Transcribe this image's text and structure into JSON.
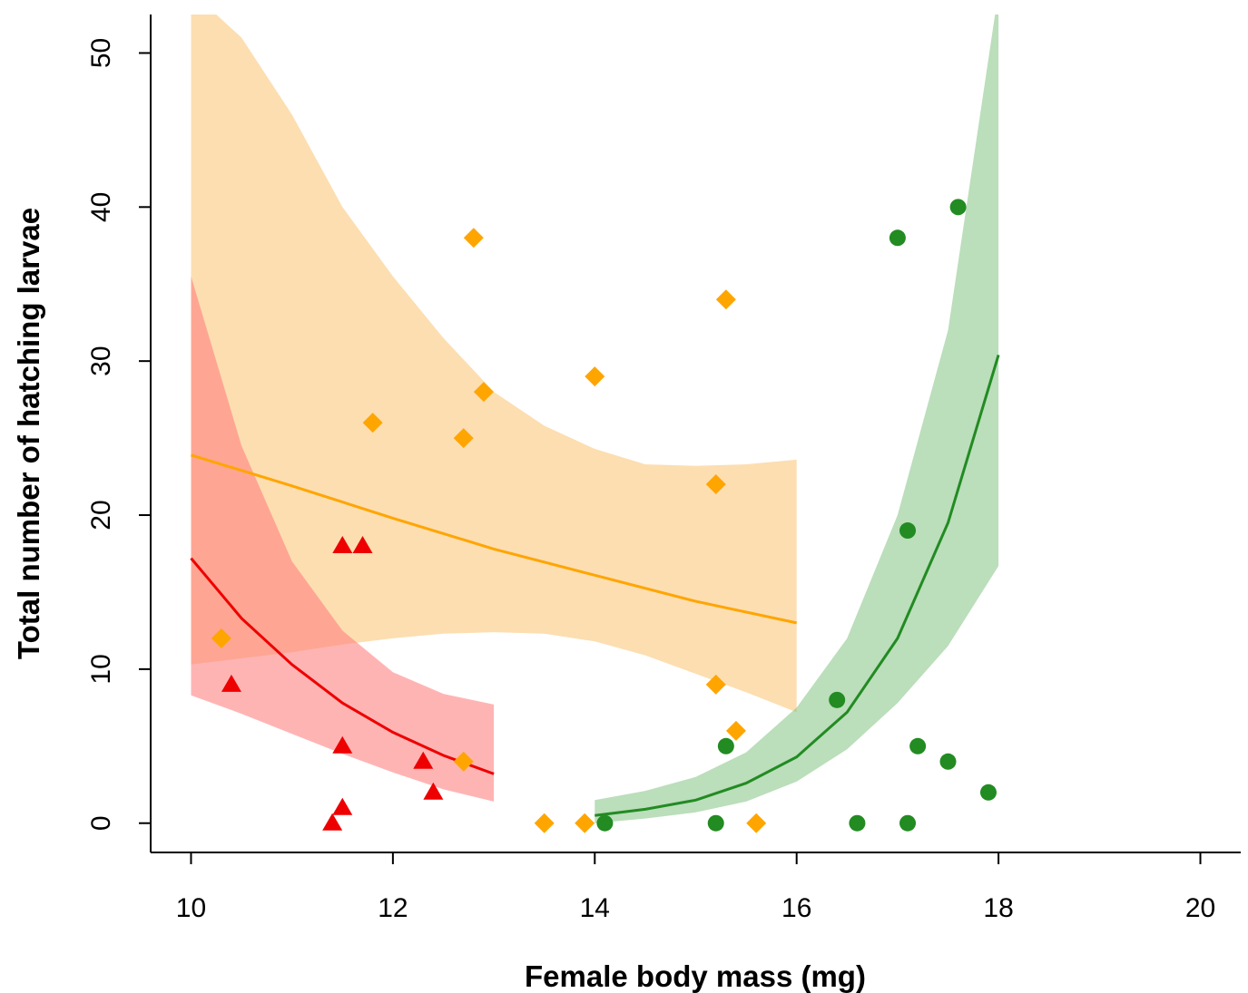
{
  "chart_data": {
    "type": "scatter",
    "title": "",
    "xlabel": "Female body mass (mg)",
    "ylabel": "Total number of hatching larvae",
    "xlim": [
      9.6,
      20.4
    ],
    "ylim": [
      -1.9,
      52.5
    ],
    "x_ticks": [
      10,
      12,
      14,
      16,
      18,
      20
    ],
    "y_ticks": [
      0,
      10,
      20,
      30,
      40,
      50
    ],
    "grid": false,
    "legend": "none",
    "series": [
      {
        "marker": "diamond",
        "color": "#FFA500",
        "band_color": "rgba(250,205,135,0.65)",
        "points": [
          {
            "x": 10.3,
            "y": 12
          },
          {
            "x": 11.8,
            "y": 26
          },
          {
            "x": 12.7,
            "y": 25
          },
          {
            "x": 12.8,
            "y": 38
          },
          {
            "x": 12.9,
            "y": 28
          },
          {
            "x": 12.7,
            "y": 4
          },
          {
            "x": 13.5,
            "y": 0
          },
          {
            "x": 13.9,
            "y": 0
          },
          {
            "x": 14.0,
            "y": 29
          },
          {
            "x": 15.2,
            "y": 22
          },
          {
            "x": 15.3,
            "y": 34
          },
          {
            "x": 15.2,
            "y": 9
          },
          {
            "x": 15.4,
            "y": 6
          },
          {
            "x": 15.6,
            "y": 0
          }
        ],
        "fit": {
          "x": [
            10,
            11,
            12,
            13,
            14,
            15,
            16
          ],
          "y": [
            23.9,
            21.9,
            19.8,
            17.8,
            16.1,
            14.4,
            13.0
          ]
        },
        "band": {
          "x": [
            10,
            10.5,
            11,
            11.5,
            12,
            12.5,
            13,
            13.5,
            14,
            14.5,
            15,
            15.5,
            16
          ],
          "lower": [
            10.3,
            10.7,
            11.1,
            11.6,
            12.0,
            12.3,
            12.4,
            12.3,
            11.8,
            10.9,
            9.7,
            8.5,
            7.2
          ],
          "upper": [
            54.0,
            51.0,
            46.0,
            40.0,
            35.5,
            31.5,
            28.0,
            25.8,
            24.3,
            23.3,
            23.2,
            23.3,
            23.6
          ]
        }
      },
      {
        "marker": "triangle",
        "color": "#EE0000",
        "band_color": "rgba(255,125,125,0.58)",
        "points": [
          {
            "x": 10.4,
            "y": 9
          },
          {
            "x": 11.5,
            "y": 18
          },
          {
            "x": 11.7,
            "y": 18
          },
          {
            "x": 11.5,
            "y": 5
          },
          {
            "x": 11.5,
            "y": 1
          },
          {
            "x": 11.4,
            "y": 0
          },
          {
            "x": 12.3,
            "y": 4
          },
          {
            "x": 12.4,
            "y": 2
          }
        ],
        "fit": {
          "x": [
            10,
            10.5,
            11,
            11.5,
            12,
            12.5,
            13
          ],
          "y": [
            17.2,
            13.3,
            10.3,
            7.8,
            5.9,
            4.4,
            3.2
          ]
        },
        "band": {
          "x": [
            10,
            10.5,
            11,
            11.5,
            12,
            12.5,
            13
          ],
          "lower": [
            8.3,
            7.1,
            5.8,
            4.5,
            3.3,
            2.2,
            1.4
          ],
          "upper": [
            35.5,
            24.5,
            17.0,
            12.5,
            9.8,
            8.4,
            7.7
          ]
        }
      },
      {
        "marker": "circle",
        "color": "#228B22",
        "band_color": "rgba(120,190,120,0.5)",
        "points": [
          {
            "x": 14.1,
            "y": 0
          },
          {
            "x": 15.2,
            "y": 0
          },
          {
            "x": 15.3,
            "y": 5
          },
          {
            "x": 16.4,
            "y": 8
          },
          {
            "x": 16.6,
            "y": 0
          },
          {
            "x": 17.0,
            "y": 38
          },
          {
            "x": 17.1,
            "y": 19
          },
          {
            "x": 17.1,
            "y": 0
          },
          {
            "x": 17.2,
            "y": 5
          },
          {
            "x": 17.5,
            "y": 4
          },
          {
            "x": 17.6,
            "y": 40
          },
          {
            "x": 17.9,
            "y": 2
          }
        ],
        "fit": {
          "x": [
            14,
            14.5,
            15,
            15.5,
            16,
            16.5,
            17,
            17.5,
            18
          ],
          "y": [
            0.5,
            0.9,
            1.5,
            2.6,
            4.3,
            7.2,
            12.0,
            19.5,
            30.4
          ]
        },
        "band": {
          "x": [
            14,
            14.5,
            15,
            15.5,
            16,
            16.5,
            17,
            17.5,
            18
          ],
          "lower": [
            0.0,
            0.3,
            0.7,
            1.4,
            2.7,
            4.8,
            7.8,
            11.5,
            16.7
          ],
          "upper": [
            1.5,
            2.1,
            3.0,
            4.6,
            7.5,
            12.0,
            20.0,
            32.0,
            54.0
          ]
        }
      }
    ]
  }
}
